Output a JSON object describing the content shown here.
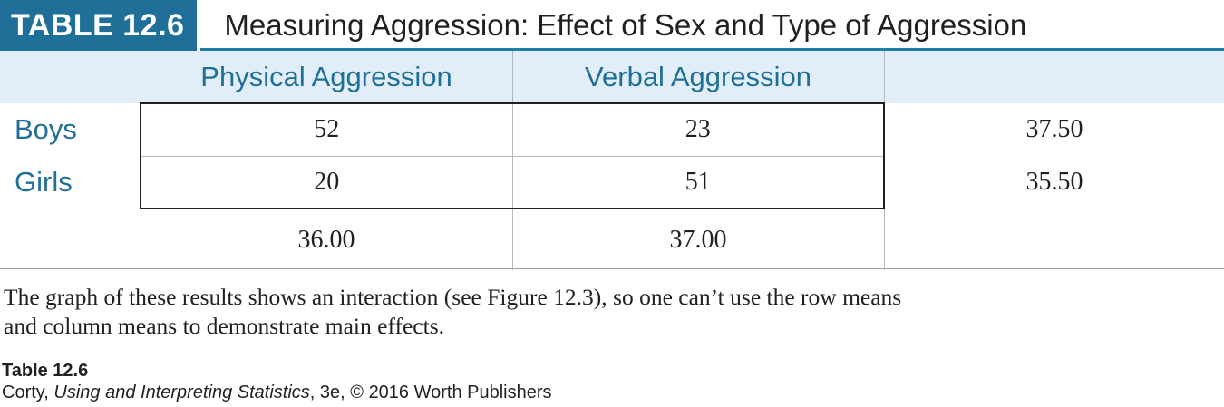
{
  "header": {
    "label": "TABLE 12.6",
    "title": "Measuring Aggression: Effect of Sex and Type of Aggression"
  },
  "table": {
    "columns": [
      "Physical Aggression",
      "Verbal Aggression",
      ""
    ],
    "rows": [
      {
        "label": "Boys",
        "values": [
          "52",
          "23"
        ],
        "mean": "37.50"
      },
      {
        "label": "Girls",
        "values": [
          "20",
          "51"
        ],
        "mean": "35.50"
      }
    ],
    "column_means": [
      "36.00",
      "37.00"
    ]
  },
  "note": {
    "line1": "The graph of these results shows an interaction (see Figure 12.3), so one can’t use the row means",
    "line2": "and column means to demonstrate main effects."
  },
  "credit": {
    "title": "Table 12.6",
    "author": "Corty, ",
    "book": "Using and Interpreting Statistics",
    "rest": ", 3e, © 2016 Worth Publishers"
  }
}
